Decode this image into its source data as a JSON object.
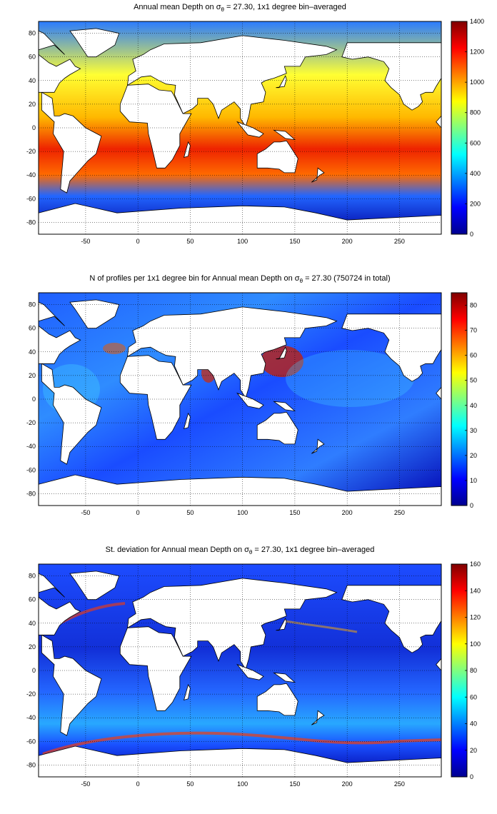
{
  "colors": {
    "ocean_map": "jet colormap",
    "land": "#ffffff",
    "coastline": "#000000"
  },
  "panels": [
    {
      "title_before": "Annual mean Depth on ",
      "title_sigma": "σ",
      "title_sub": "θ",
      "title_after": " = 27.30, 1x1 degree bin–averaged",
      "colorbar": {
        "min": 0,
        "max": 1400,
        "ticks": [
          "0",
          "200",
          "400",
          "600",
          "800",
          "1000",
          "1200",
          "1400"
        ]
      }
    },
    {
      "title_before": "N of profiles per 1x1 degree bin for Annual mean Depth on ",
      "title_sigma": "σ",
      "title_sub": "θ",
      "title_after": " = 27.30 (750724 in total)",
      "colorbar": {
        "min": 0,
        "max": 85,
        "ticks": [
          "0",
          "10",
          "20",
          "30",
          "40",
          "50",
          "60",
          "70",
          "80"
        ]
      }
    },
    {
      "title_before": "St. deviation for Annual mean Depth on ",
      "title_sigma": "σ",
      "title_sub": "θ",
      "title_after": " = 27.30, 1x1 degree bin–averaged",
      "colorbar": {
        "min": 0,
        "max": 160,
        "ticks": [
          "0",
          "20",
          "40",
          "60",
          "80",
          "100",
          "120",
          "140",
          "160"
        ]
      }
    }
  ],
  "axes": {
    "x_ticks": [
      "-50",
      "0",
      "50",
      "100",
      "150",
      "200",
      "250"
    ],
    "y_ticks": [
      "80",
      "60",
      "40",
      "20",
      "0",
      "-20",
      "-40",
      "-60",
      "-80"
    ],
    "x_range": [
      -95,
      290
    ],
    "y_range": [
      -90,
      90
    ]
  }
}
